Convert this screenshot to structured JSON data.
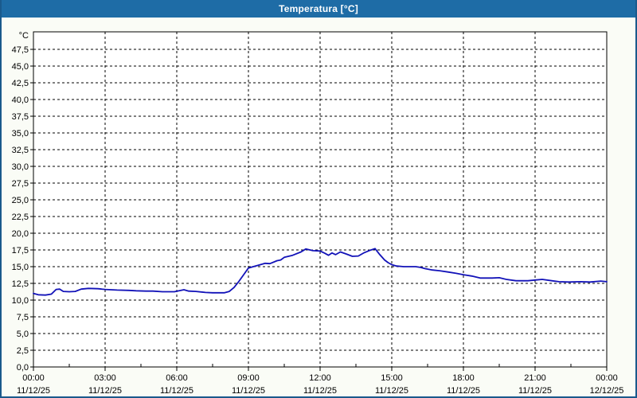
{
  "window": {
    "title": "Temperatura [°C]",
    "title_bar_color": "#1E6CA6",
    "border_color": "#1A5A8C",
    "background_color": "#FAFCF6"
  },
  "chart_data": {
    "type": "line",
    "title": "Temperatura [°C]",
    "unit_label": "°C",
    "xlabel": "",
    "ylabel": "°C",
    "ylim": [
      0,
      50.125
    ],
    "xlim_hours": [
      0,
      24
    ],
    "y_tick_step": 2.5,
    "y_tick_labels": [
      "0,0",
      "2,5",
      "5,0",
      "7,5",
      "10,0",
      "12,5",
      "15,0",
      "17,5",
      "20,0",
      "22,5",
      "25,0",
      "27,5",
      "30,0",
      "32,5",
      "35,0",
      "37,5",
      "40,0",
      "42,5",
      "45,0",
      "47,5"
    ],
    "x_ticks": [
      {
        "time": "00:00",
        "date": "11/12/25"
      },
      {
        "time": "03:00",
        "date": "11/12/25"
      },
      {
        "time": "06:00",
        "date": "11/12/25"
      },
      {
        "time": "09:00",
        "date": "11/12/25"
      },
      {
        "time": "12:00",
        "date": "11/12/25"
      },
      {
        "time": "15:00",
        "date": "11/12/25"
      },
      {
        "time": "18:00",
        "date": "11/12/25"
      },
      {
        "time": "21:00",
        "date": "11/12/25"
      },
      {
        "time": "00:00",
        "date": "12/12/25"
      }
    ],
    "x_minor_tick_hours": [
      1.5,
      4.5,
      7.5,
      10.5,
      13.5,
      16.5,
      19.5,
      22.5
    ],
    "grid": true,
    "grid_color": "#000000",
    "plot_bg": "#FFFFFF",
    "line_color": "#1212B8",
    "series": [
      {
        "name": "Temperatura",
        "points": [
          [
            0.0,
            11.0
          ],
          [
            0.2,
            10.8
          ],
          [
            0.5,
            10.75
          ],
          [
            0.75,
            10.9
          ],
          [
            0.95,
            11.6
          ],
          [
            1.1,
            11.65
          ],
          [
            1.25,
            11.3
          ],
          [
            1.5,
            11.25
          ],
          [
            1.75,
            11.3
          ],
          [
            2.0,
            11.65
          ],
          [
            2.3,
            11.75
          ],
          [
            2.7,
            11.7
          ],
          [
            3.0,
            11.6
          ],
          [
            3.5,
            11.5
          ],
          [
            4.0,
            11.45
          ],
          [
            4.3,
            11.4
          ],
          [
            4.7,
            11.35
          ],
          [
            5.0,
            11.35
          ],
          [
            5.4,
            11.25
          ],
          [
            5.9,
            11.25
          ],
          [
            6.1,
            11.4
          ],
          [
            6.3,
            11.55
          ],
          [
            6.5,
            11.35
          ],
          [
            6.8,
            11.3
          ],
          [
            7.2,
            11.15
          ],
          [
            7.5,
            11.1
          ],
          [
            8.0,
            11.1
          ],
          [
            8.2,
            11.3
          ],
          [
            8.4,
            11.9
          ],
          [
            8.6,
            12.8
          ],
          [
            8.8,
            13.8
          ],
          [
            9.0,
            14.8
          ],
          [
            9.2,
            15.0
          ],
          [
            9.5,
            15.3
          ],
          [
            9.7,
            15.5
          ],
          [
            9.9,
            15.45
          ],
          [
            10.2,
            15.9
          ],
          [
            10.35,
            16.0
          ],
          [
            10.5,
            16.4
          ],
          [
            10.85,
            16.7
          ],
          [
            11.2,
            17.2
          ],
          [
            11.4,
            17.65
          ],
          [
            11.7,
            17.4
          ],
          [
            12.0,
            17.35
          ],
          [
            12.2,
            17.0
          ],
          [
            12.35,
            16.7
          ],
          [
            12.5,
            17.05
          ],
          [
            12.65,
            16.8
          ],
          [
            12.85,
            17.2
          ],
          [
            13.1,
            16.9
          ],
          [
            13.35,
            16.55
          ],
          [
            13.6,
            16.6
          ],
          [
            13.85,
            17.1
          ],
          [
            14.05,
            17.4
          ],
          [
            14.3,
            17.7
          ],
          [
            14.5,
            16.8
          ],
          [
            14.7,
            16.0
          ],
          [
            14.85,
            15.6
          ],
          [
            15.0,
            15.3
          ],
          [
            15.2,
            15.1
          ],
          [
            15.5,
            15.0
          ],
          [
            16.0,
            15.0
          ],
          [
            16.2,
            14.9
          ],
          [
            16.4,
            14.7
          ],
          [
            16.7,
            14.5
          ],
          [
            17.0,
            14.4
          ],
          [
            17.35,
            14.2
          ],
          [
            17.7,
            14.0
          ],
          [
            18.0,
            13.8
          ],
          [
            18.35,
            13.6
          ],
          [
            18.7,
            13.3
          ],
          [
            19.2,
            13.3
          ],
          [
            19.5,
            13.35
          ],
          [
            19.8,
            13.1
          ],
          [
            20.2,
            12.9
          ],
          [
            20.7,
            12.9
          ],
          [
            21.0,
            13.0
          ],
          [
            21.3,
            13.1
          ],
          [
            21.7,
            12.9
          ],
          [
            22.0,
            12.75
          ],
          [
            22.4,
            12.7
          ],
          [
            22.9,
            12.75
          ],
          [
            23.3,
            12.7
          ],
          [
            23.75,
            12.85
          ],
          [
            24.0,
            12.75
          ]
        ]
      }
    ]
  }
}
